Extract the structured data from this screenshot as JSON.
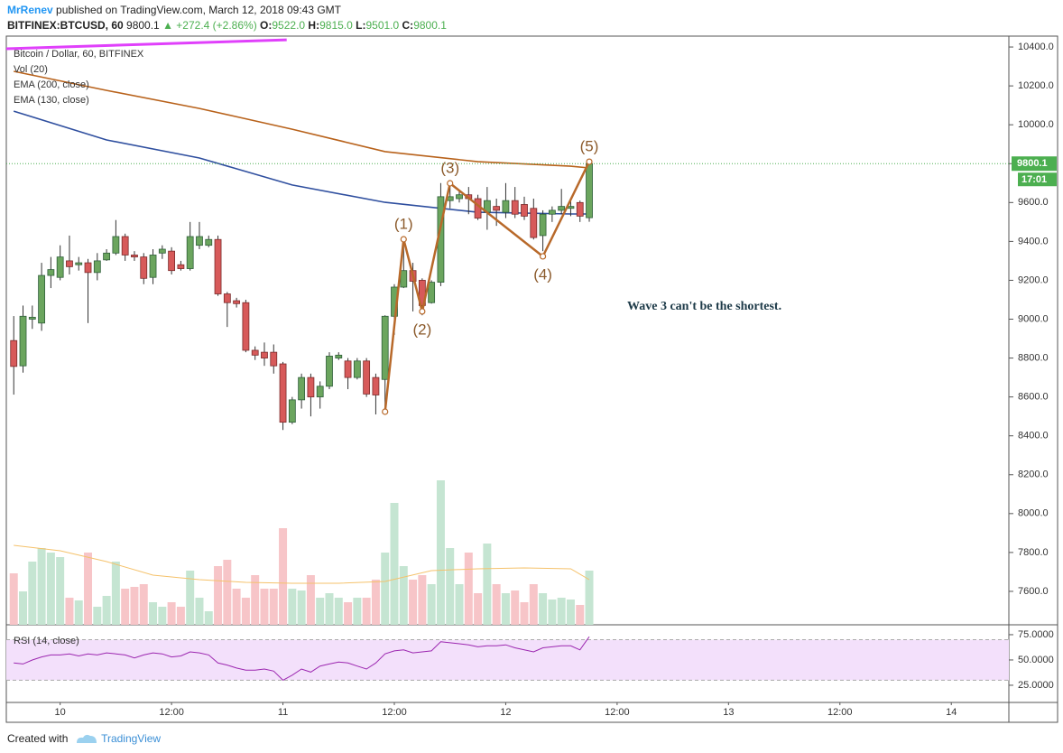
{
  "header": {
    "author": "MrRenev",
    "published": "published on TradingView.com, March 12, 2018 09:43 GMT",
    "symbol": "BITFINEX:BTCUSD, 60",
    "last": "9800.1",
    "change": "▲ +272.4 (+2.86%)",
    "o_label": "O:",
    "o": "9522.0",
    "h_label": "H:",
    "h": "9815.0",
    "l_label": "L:",
    "l": "9501.0",
    "c_label": "C:",
    "c": "9800.1"
  },
  "footer": {
    "created": "Created with",
    "brand": "TradingView"
  },
  "chart_data": {
    "type": "candlestick",
    "title": "Bitcoin / Dollar, 60, BITFINEX",
    "x": [
      -5,
      -4,
      -3,
      -2,
      -1,
      0,
      1,
      2,
      3,
      4,
      5,
      6,
      7,
      8,
      9,
      10,
      11,
      12,
      13,
      14,
      15,
      16,
      17,
      18,
      19,
      20,
      21,
      22,
      23,
      24,
      25,
      26,
      27,
      28,
      29,
      30,
      31,
      32,
      33,
      34,
      35,
      36,
      37,
      38,
      39,
      40,
      41,
      42,
      43,
      44,
      45,
      46,
      47,
      48,
      49,
      50,
      51,
      52,
      53,
      54,
      55,
      56,
      57
    ],
    "open": [
      8890,
      8760,
      9000,
      8980,
      9225,
      9215,
      9300,
      9280,
      9290,
      9240,
      9305,
      9340,
      9425,
      9330,
      9320,
      9215,
      9340,
      9350,
      9280,
      9260,
      9380,
      9380,
      9410,
      9130,
      9095,
      9085,
      8840,
      8830,
      8830,
      8770,
      8470,
      8585,
      8700,
      8600,
      8655,
      8800,
      8785,
      8700,
      8785,
      8700,
      8690,
      9015,
      9165,
      9250,
      9200,
      9085,
      9190,
      9610,
      9620,
      9640,
      9620,
      9550,
      9580,
      9550,
      9610,
      9590,
      9570,
      9430,
      9540,
      9560,
      9570,
      9600,
      9522
    ],
    "high": [
      9016,
      9070,
      9070,
      9290,
      9320,
      9380,
      9430,
      9320,
      9310,
      9340,
      9360,
      9510,
      9440,
      9350,
      9340,
      9360,
      9380,
      9370,
      9300,
      9500,
      9500,
      9430,
      9430,
      9140,
      9110,
      9100,
      8860,
      8880,
      8870,
      8780,
      8600,
      8720,
      8720,
      8680,
      8830,
      8830,
      8800,
      8800,
      8800,
      8720,
      9020,
      9180,
      9400,
      9290,
      9210,
      9200,
      9700,
      9700,
      9660,
      9680,
      9640,
      9680,
      9620,
      9700,
      9680,
      9630,
      9620,
      9560,
      9580,
      9670,
      9610,
      9610,
      9815
    ],
    "low": [
      8612,
      8725,
      8950,
      8940,
      9160,
      9200,
      9230,
      9250,
      8980,
      9200,
      9300,
      9330,
      9300,
      9300,
      9180,
      9180,
      9310,
      9230,
      9250,
      9250,
      9360,
      9370,
      9120,
      8960,
      9060,
      8830,
      8790,
      8760,
      8720,
      8430,
      8460,
      8540,
      8500,
      8540,
      8640,
      8790,
      8640,
      8690,
      8600,
      8510,
      8520,
      8920,
      9160,
      9040,
      9020,
      9080,
      9170,
      9570,
      9600,
      9540,
      9510,
      9460,
      9480,
      9520,
      9520,
      9510,
      9410,
      9350,
      9500,
      9540,
      9530,
      9500,
      9501
    ],
    "close": [
      8757,
      9015,
      9010,
      9225,
      9255,
      9320,
      9270,
      9290,
      9240,
      9300,
      9340,
      9425,
      9330,
      9320,
      9210,
      9330,
      9360,
      9250,
      9260,
      9425,
      9425,
      9410,
      9130,
      9085,
      9080,
      8840,
      8815,
      8800,
      8760,
      8470,
      8585,
      8700,
      8600,
      8655,
      8810,
      8815,
      8700,
      8785,
      8615,
      8610,
      9015,
      9165,
      9250,
      9195,
      9070,
      9190,
      9630,
      9630,
      9640,
      9620,
      9520,
      9610,
      9560,
      9610,
      9540,
      9530,
      9420,
      9540,
      9560,
      9580,
      9580,
      9530,
      9800.1
    ],
    "up_color": "#6ba55e",
    "down_color": "#d75a5a",
    "xlim": [
      -5.8,
      102.2
    ],
    "xticks": [
      {
        "value": 0,
        "label": "10"
      },
      {
        "value": 12,
        "label": "12:00"
      },
      {
        "value": 24,
        "label": "11"
      },
      {
        "value": 36,
        "label": "12:00"
      },
      {
        "value": 48,
        "label": "12"
      },
      {
        "value": 60,
        "label": "12:00"
      },
      {
        "value": 72,
        "label": "13"
      },
      {
        "value": 84,
        "label": "12:00"
      },
      {
        "value": 96,
        "label": "14"
      }
    ],
    "ylim": [
      7428,
      10456
    ],
    "yticks": [
      {
        "value": 7600,
        "label": "7600.0"
      },
      {
        "value": 7800,
        "label": "7800.0"
      },
      {
        "value": 8000,
        "label": "8000.0"
      },
      {
        "value": 8200,
        "label": "8200.0"
      },
      {
        "value": 8400,
        "label": "8400.0"
      },
      {
        "value": 8600,
        "label": "8600.0"
      },
      {
        "value": 8800,
        "label": "8800.0"
      },
      {
        "value": 9000,
        "label": "9000.0"
      },
      {
        "value": 9200,
        "label": "9200.0"
      },
      {
        "value": 9400,
        "label": "9400.0"
      },
      {
        "value": 9600,
        "label": "9600.0"
      },
      {
        "value": 9800,
        "label": "9800.0"
      },
      {
        "value": 10000,
        "label": "10000.0"
      },
      {
        "value": 10200,
        "label": "10200.0"
      },
      {
        "value": 10400,
        "label": "10400.0"
      }
    ],
    "grid": false,
    "last_price": {
      "value": 9800.1,
      "label": "9800.1"
    },
    "countdown": "17:01",
    "last_color": "#4caf50",
    "volume": {
      "name": "Vol (20)",
      "values": [
        57,
        37,
        70,
        85,
        80,
        75,
        30,
        27,
        80,
        20,
        32,
        70,
        40,
        42,
        45,
        25,
        20,
        25,
        20,
        60,
        30,
        15,
        65,
        72,
        40,
        30,
        55,
        40,
        40,
        107,
        40,
        38,
        55,
        30,
        35,
        30,
        25,
        30,
        30,
        50,
        80,
        135,
        65,
        50,
        55,
        45,
        160,
        85,
        45,
        80,
        35,
        90,
        45,
        35,
        38,
        25,
        45,
        35,
        28,
        30,
        28,
        22,
        60
      ],
      "up_color": "#c5e5d2",
      "down_color": "#f7c5c8",
      "ma_color": "#f5c26b",
      "ma_x": [
        -5,
        0,
        5,
        10,
        15,
        20,
        25,
        30,
        35,
        40,
        45,
        50,
        55,
        57
      ],
      "ma_values": [
        88,
        82,
        70,
        55,
        50,
        47,
        46,
        46,
        48,
        60,
        62,
        63,
        62,
        50
      ]
    },
    "ema": [
      {
        "name": "EMA (200, close)",
        "color": "#b8621b",
        "x": [
          -5,
          5,
          15,
          25,
          35,
          45,
          55,
          57
        ],
        "values": [
          10275,
          10177,
          10084,
          9977,
          9862,
          9810,
          9787,
          9778
        ]
      },
      {
        "name": "EMA (130, close)",
        "color": "#2f4f9f",
        "x": [
          -5,
          5,
          15,
          25,
          35,
          45,
          55,
          57
        ],
        "values": [
          10070,
          9922,
          9829,
          9690,
          9601,
          9550,
          9541,
          9541
        ]
      }
    ],
    "trendline": {
      "color": "#e040fb",
      "x": [
        -5.8,
        24.4
      ],
      "values": [
        10391,
        10437
      ]
    },
    "waves": {
      "color": "#b8692a",
      "label_color": "#8b5a2b",
      "x": [
        35,
        37,
        39,
        42,
        52,
        57
      ],
      "values": [
        8524,
        9411,
        9040,
        9699,
        9323,
        9810
      ],
      "labels": [
        null,
        "(1)",
        "(2)",
        "(3)",
        "(4)",
        "(5)"
      ]
    },
    "annotation": "Wave 3 can't be the shortest.",
    "rsi": {
      "name": "RSI (14, close)",
      "color": "#9c27b0",
      "band_color": "#f3e0fb",
      "band": [
        30,
        70
      ],
      "ylim": [
        8,
        83
      ],
      "yticks": [
        {
          "value": 75,
          "label": "75.0000"
        },
        {
          "value": 50,
          "label": "50.0000"
        },
        {
          "value": 25,
          "label": "25.0000"
        }
      ],
      "values": [
        47,
        46,
        50,
        53,
        55,
        55,
        56,
        54,
        56,
        55,
        57,
        56,
        55,
        52,
        55,
        57,
        56,
        53,
        54,
        58,
        57,
        55,
        47,
        45,
        42,
        40,
        40,
        41,
        39,
        30,
        35,
        41,
        38,
        44,
        46,
        48,
        47,
        44,
        41,
        47,
        56,
        59,
        60,
        57,
        58,
        59,
        68,
        67,
        66,
        65,
        63,
        64,
        64,
        65,
        62,
        60,
        58,
        62,
        63,
        64,
        64,
        60,
        73
      ]
    }
  }
}
